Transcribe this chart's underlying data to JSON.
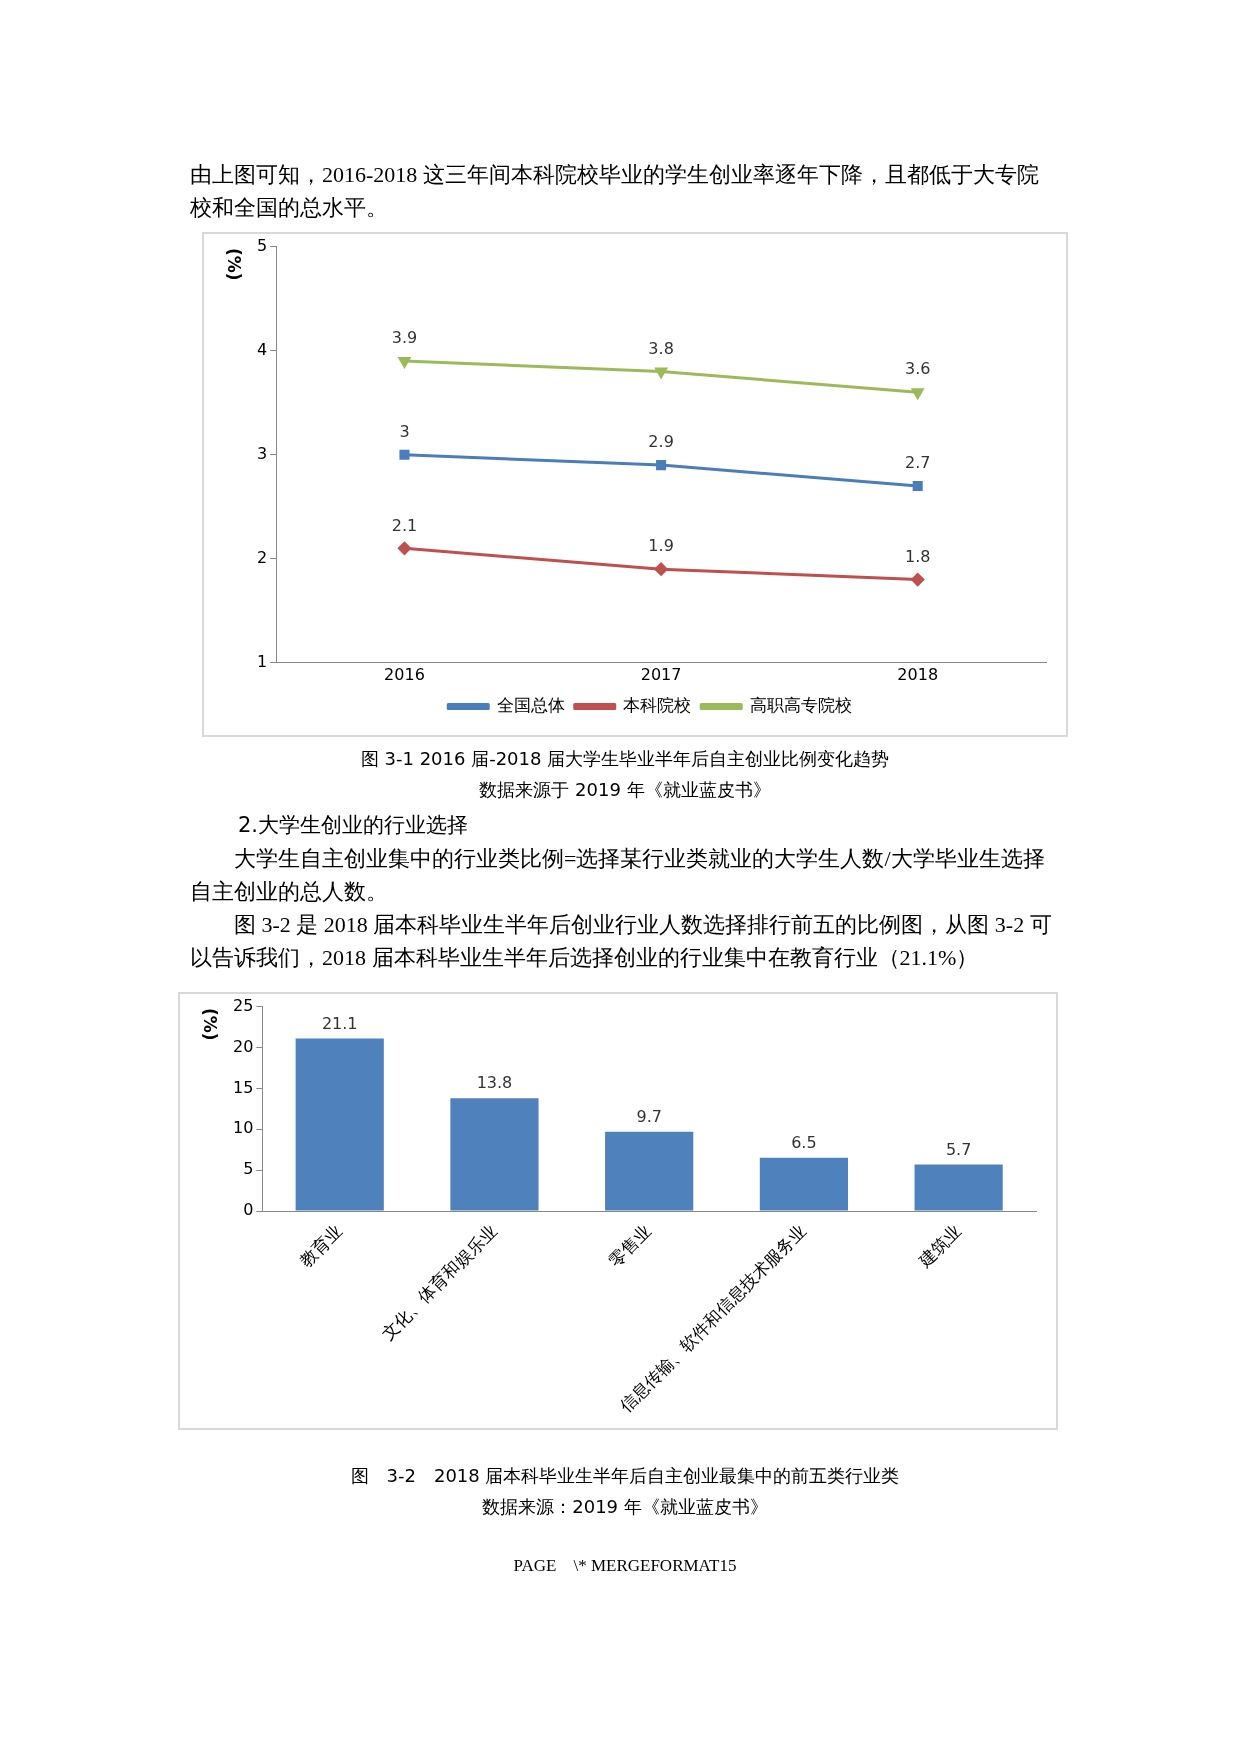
{
  "chart_data": [
    {
      "type": "line",
      "title": "图 3-1 2016 届-2018 届大学生毕业半年后自主创业比例变化趋势",
      "subtitle": "数据来源于 2019 年《就业蓝皮书》",
      "ylabel": "(%)",
      "annotations": [
        "由上图可知，2016-2018 这三年间本科院校毕业的学生创业率逐年下降，且都低于大专院校和全国的总水平。"
      ],
      "categories": [
        "2016",
        "2017",
        "2018"
      ],
      "series": [
        {
          "name": "全国总体",
          "color": "#4a7ebb",
          "marker": "square",
          "values": [
            3,
            2.9,
            2.7
          ]
        },
        {
          "name": "本科院校",
          "color": "#c0504d",
          "marker": "diamond",
          "values": [
            2.1,
            1.9,
            1.8
          ]
        },
        {
          "name": "高职高专院校",
          "color": "#9bbb59",
          "marker": "triangle",
          "values": [
            3.9,
            3.8,
            3.6
          ]
        }
      ],
      "ylim": [
        1,
        5
      ],
      "yticks": [
        1,
        2,
        3,
        4,
        5
      ],
      "grid": false,
      "legend": "bottom",
      "data_labels": true
    },
    {
      "type": "bar",
      "title": "图　3-2　2018 届本科毕业生半年后自主创业最集中的前五类行业类",
      "subtitle": "数据来源：2019 年《就业蓝皮书》",
      "ylabel": "(%)",
      "annotations": [
        "2.大学生创业的行业选择",
        "大学生自主创业集中的行业类比例=选择某行业类就业的大学生人数/大学毕业生选择自主创业的总人数。",
        "图 3-2 是 2018 届本科毕业生半年后创业行业人数选择排行前五的比例图，从图 3-2 可以告诉我们，2018 届本科毕业生半年后选择创业的行业集中在教育行业（21.1%）",
        "PAGE　\\* MERGEFORMAT15"
      ],
      "categories": [
        "教育业",
        "文化、体育和娱乐业",
        "零售业",
        "信息传输、软件和信息技术服务业",
        "建筑业"
      ],
      "values": [
        21.1,
        13.8,
        9.7,
        6.5,
        5.7
      ],
      "color": "#4f81bd",
      "ylim": [
        0,
        25
      ],
      "yticks": [
        0,
        5,
        10,
        15,
        20,
        25
      ],
      "grid": false,
      "data_labels": true
    }
  ]
}
